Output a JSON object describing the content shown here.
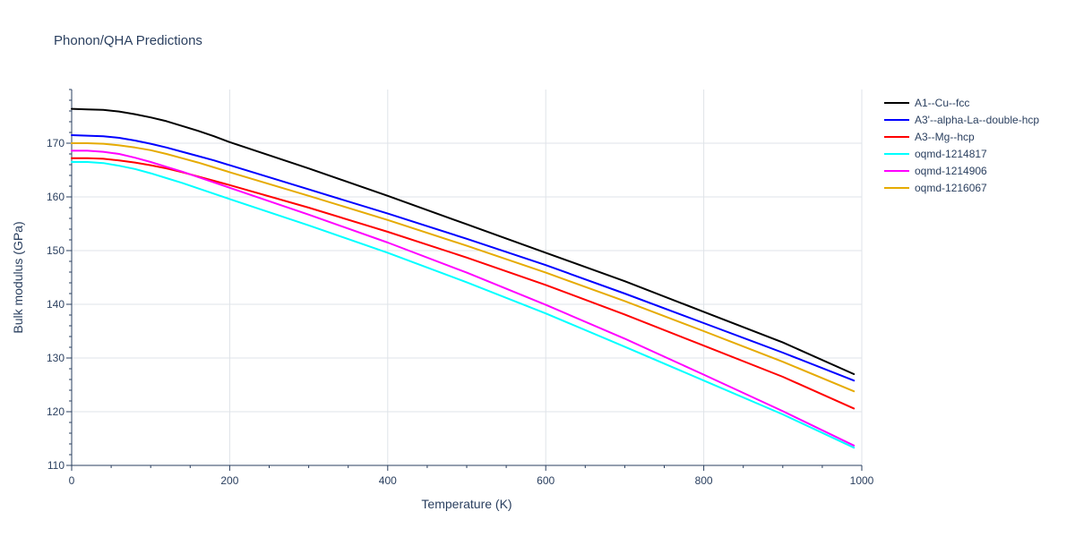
{
  "chart_data": {
    "type": "line",
    "title": "Phonon/QHA Predictions",
    "xlabel": "Temperature (K)",
    "ylabel": "Bulk modulus (GPa)",
    "xlim": [
      0,
      1000
    ],
    "ylim": [
      110,
      180
    ],
    "xticks": [
      0,
      200,
      400,
      600,
      800,
      1000
    ],
    "yticks": [
      110,
      120,
      130,
      140,
      150,
      160,
      170
    ],
    "grid": true,
    "legend_position": "top-right",
    "series": [
      {
        "name": "A1--Cu--fcc",
        "color": "#000000",
        "x": [
          0,
          20,
          40,
          60,
          80,
          100,
          120,
          140,
          160,
          180,
          200,
          300,
          400,
          500,
          600,
          700,
          800,
          900,
          990
        ],
        "y": [
          176.4,
          176.3,
          176.2,
          175.9,
          175.4,
          174.8,
          174.1,
          173.2,
          172.3,
          171.3,
          170.2,
          165.3,
          160.2,
          154.9,
          149.6,
          144.3,
          138.6,
          132.9,
          127.0
        ]
      },
      {
        "name": "A3'--alpha-La--double-hcp",
        "color": "#0000ff",
        "x": [
          0,
          20,
          40,
          60,
          80,
          100,
          120,
          140,
          160,
          180,
          200,
          300,
          400,
          500,
          600,
          700,
          800,
          900,
          990
        ],
        "y": [
          171.5,
          171.4,
          171.3,
          171.0,
          170.5,
          169.9,
          169.2,
          168.4,
          167.6,
          166.8,
          165.9,
          161.4,
          156.9,
          152.2,
          147.3,
          142.0,
          136.5,
          131.0,
          125.8
        ]
      },
      {
        "name": "A3--Mg--hcp",
        "color": "#ff0000",
        "x": [
          0,
          20,
          40,
          60,
          80,
          100,
          120,
          140,
          160,
          180,
          200,
          300,
          400,
          500,
          600,
          700,
          800,
          900,
          990
        ],
        "y": [
          167.2,
          167.2,
          167.1,
          166.8,
          166.4,
          165.9,
          165.3,
          164.6,
          163.8,
          163.0,
          162.2,
          158.0,
          153.5,
          148.7,
          143.6,
          138.1,
          132.3,
          126.5,
          120.6
        ]
      },
      {
        "name": "oqmd-1214817",
        "color": "#00ffff",
        "x": [
          0,
          20,
          40,
          60,
          80,
          100,
          120,
          140,
          160,
          180,
          200,
          300,
          400,
          500,
          600,
          700,
          800,
          900,
          990
        ],
        "y": [
          166.5,
          166.5,
          166.3,
          165.8,
          165.2,
          164.4,
          163.5,
          162.6,
          161.6,
          160.6,
          159.6,
          154.7,
          149.6,
          144.1,
          138.3,
          132.1,
          125.8,
          119.5,
          113.3
        ]
      },
      {
        "name": "oqmd-1214906",
        "color": "#ff00ff",
        "x": [
          0,
          20,
          40,
          60,
          80,
          100,
          120,
          140,
          160,
          180,
          200,
          300,
          400,
          500,
          600,
          700,
          800,
          900,
          990
        ],
        "y": [
          168.6,
          168.6,
          168.4,
          168.0,
          167.3,
          166.5,
          165.6,
          164.7,
          163.7,
          162.7,
          161.7,
          156.7,
          151.5,
          145.9,
          139.9,
          133.6,
          126.9,
          120.1,
          113.7
        ]
      },
      {
        "name": "oqmd-1216067",
        "color": "#e6ab02",
        "x": [
          0,
          20,
          40,
          60,
          80,
          100,
          120,
          140,
          160,
          180,
          200,
          300,
          400,
          500,
          600,
          700,
          800,
          900,
          990
        ],
        "y": [
          170.0,
          170.0,
          169.9,
          169.6,
          169.2,
          168.7,
          168.0,
          167.2,
          166.4,
          165.5,
          164.6,
          160.2,
          155.7,
          150.9,
          145.9,
          140.6,
          135.0,
          129.3,
          123.8
        ]
      }
    ]
  }
}
